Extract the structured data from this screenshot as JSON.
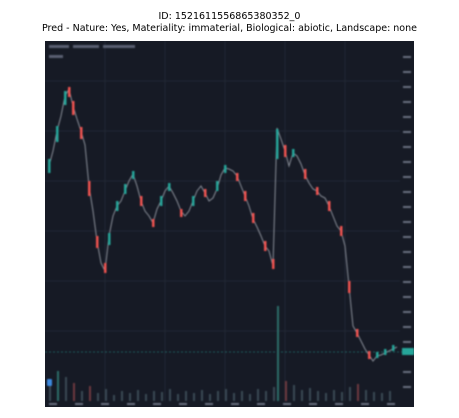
{
  "caption": {
    "line1": "ID: 1521611556865380352_0",
    "line2": "Pred - Nature: Yes, Materiality: immaterial, Biological: abiotic, Landscape: none"
  },
  "screenshot": {
    "symbol_label": "",
    "background_color": "#161a25",
    "up_color": "#26a69a",
    "down_color": "#ef5350",
    "price_tag_color": "#26a69a",
    "blurred": true
  }
}
